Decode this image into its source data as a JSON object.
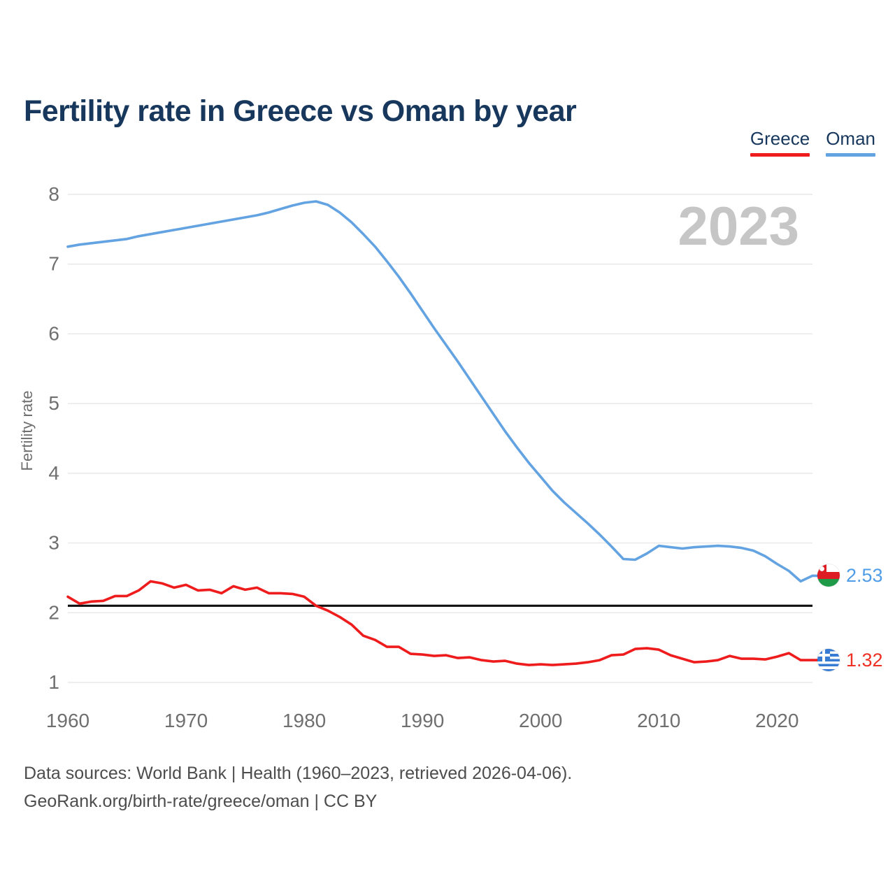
{
  "header": {
    "title": "Fertility rate in Greece vs Oman by year"
  },
  "legend": [
    {
      "label": "Greece",
      "color": "#ee1c1c"
    },
    {
      "label": "Oman",
      "color": "#64a3e1"
    }
  ],
  "watermark": "2023",
  "footer": {
    "line1": "Data sources: World Bank | Health (1960–2023, retrieved 2026-04-06).",
    "line2": "GeoRank.org/birth-rate/greece/oman | CC BY"
  },
  "chart_data": {
    "type": "line",
    "title": "Fertility rate in Greece vs Oman by year",
    "xlabel": "",
    "ylabel": "Fertility rate",
    "x_start": 1960,
    "xlim": [
      1960,
      2023
    ],
    "ylim": [
      1,
      8
    ],
    "xticks": [
      1960,
      1970,
      1980,
      1990,
      2000,
      2010,
      2020
    ],
    "yticks": [
      1,
      2,
      3,
      4,
      5,
      6,
      7,
      8
    ],
    "grid": true,
    "legend_position": "top-right",
    "refline": {
      "value": 2.1,
      "color": "#111111"
    },
    "series": [
      {
        "name": "Greece",
        "color": "#ee1c1c",
        "label_color": "#ee3124",
        "flag": "greece",
        "end_label": "1.32",
        "values": [
          2.23,
          2.13,
          2.16,
          2.17,
          2.24,
          2.24,
          2.32,
          2.45,
          2.42,
          2.36,
          2.4,
          2.32,
          2.33,
          2.28,
          2.38,
          2.33,
          2.36,
          2.28,
          2.28,
          2.27,
          2.23,
          2.1,
          2.03,
          1.94,
          1.83,
          1.67,
          1.61,
          1.51,
          1.51,
          1.41,
          1.4,
          1.38,
          1.39,
          1.35,
          1.36,
          1.32,
          1.3,
          1.31,
          1.27,
          1.25,
          1.26,
          1.25,
          1.26,
          1.27,
          1.29,
          1.32,
          1.39,
          1.4,
          1.48,
          1.49,
          1.47,
          1.39,
          1.34,
          1.29,
          1.3,
          1.32,
          1.38,
          1.34,
          1.34,
          1.33,
          1.37,
          1.42,
          1.32,
          1.32
        ]
      },
      {
        "name": "Oman",
        "color": "#64a3e1",
        "label_color": "#4f9de8",
        "flag": "oman",
        "end_label": "2.53",
        "values": [
          7.25,
          7.28,
          7.3,
          7.32,
          7.34,
          7.36,
          7.4,
          7.43,
          7.46,
          7.49,
          7.52,
          7.55,
          7.58,
          7.61,
          7.64,
          7.67,
          7.7,
          7.74,
          7.79,
          7.84,
          7.88,
          7.9,
          7.85,
          7.74,
          7.6,
          7.43,
          7.25,
          7.04,
          6.82,
          6.58,
          6.33,
          6.08,
          5.84,
          5.6,
          5.35,
          5.1,
          4.85,
          4.6,
          4.37,
          4.15,
          3.95,
          3.75,
          3.58,
          3.43,
          3.28,
          3.12,
          2.95,
          2.77,
          2.76,
          2.85,
          2.96,
          2.94,
          2.92,
          2.94,
          2.95,
          2.96,
          2.95,
          2.93,
          2.89,
          2.81,
          2.7,
          2.6,
          2.45,
          2.53
        ]
      }
    ]
  }
}
